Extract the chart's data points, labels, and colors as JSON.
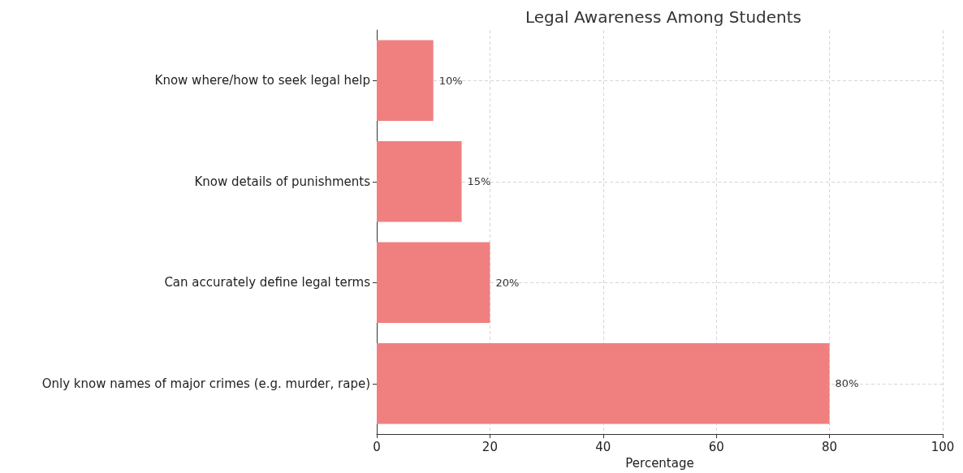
{
  "chart_data": {
    "type": "bar",
    "orientation": "horizontal",
    "title": "Legal Awareness Among Students",
    "xlabel": "Percentage",
    "categories": [
      "Know where/how to seek legal help",
      "Know details of punishments",
      "Can accurately define legal terms",
      "Only know names of major crimes (e.g. murder, rape)"
    ],
    "values": [
      10,
      15,
      20,
      80
    ],
    "value_labels": [
      "10%",
      "15%",
      "20%",
      "80%"
    ],
    "color": "#f08080",
    "xlim": [
      0,
      100
    ],
    "xticks": [
      0,
      20,
      40,
      60,
      80,
      100
    ],
    "grid": true
  }
}
